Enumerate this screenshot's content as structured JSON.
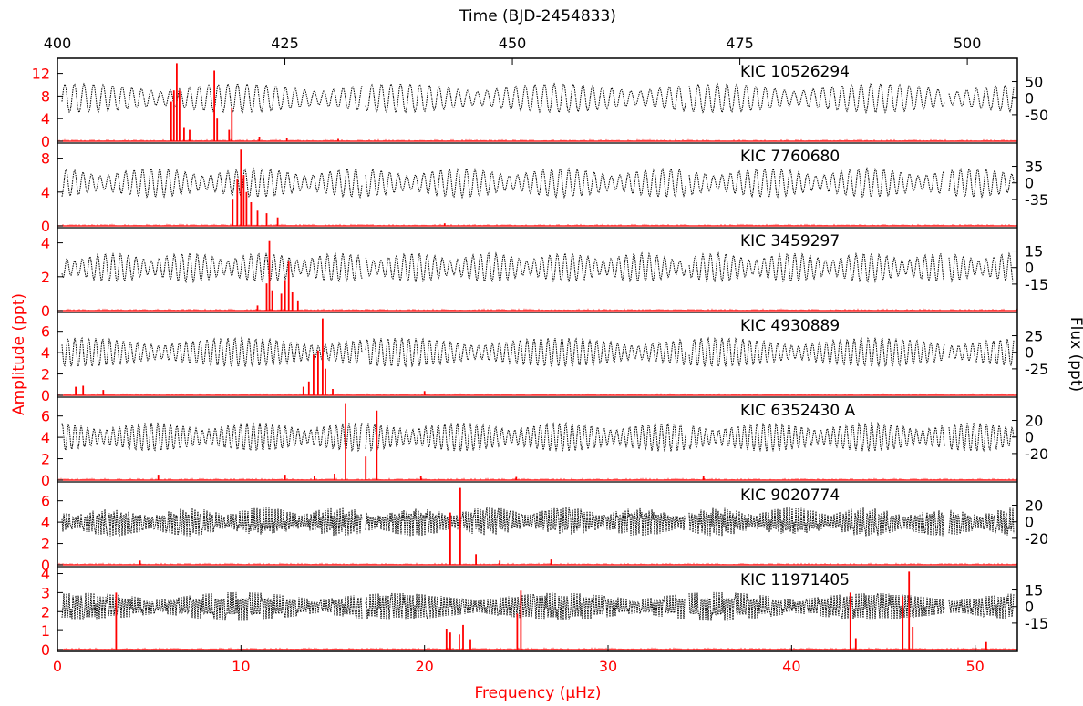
{
  "chart_data": {
    "type": "line",
    "title": "",
    "colors": {
      "amplitude": "#ff0000",
      "flux": "#000000"
    },
    "xlabel": "Frequency (μHz)",
    "xlim": [
      0,
      52.3
    ],
    "xticks": [
      0,
      10,
      20,
      30,
      40,
      50
    ],
    "x2label": "Time (BJD-2454833)",
    "x2lim": [
      400,
      505.5
    ],
    "x2ticks": [
      400,
      425,
      450,
      475,
      500
    ],
    "ylabel_left": "Amplitude (ppt)",
    "ylabel_right": "Flux (ppt)",
    "grid": false,
    "legend": "none",
    "panels": [
      {
        "name": "KIC 10526294",
        "amp_ticks": [
          0,
          4,
          8,
          12
        ],
        "amp_ylim": [
          0,
          13.8
        ],
        "flux_ticks": [
          "50",
          "0",
          "-50"
        ],
        "peaks": [
          [
            6.2,
            7
          ],
          [
            6.35,
            9
          ],
          [
            6.5,
            13.8
          ],
          [
            6.65,
            9
          ],
          [
            6.9,
            2.5
          ],
          [
            7.2,
            2
          ],
          [
            8.55,
            12.5
          ],
          [
            8.7,
            4
          ],
          [
            9.5,
            5.8
          ],
          [
            9.35,
            2
          ],
          [
            11.0,
            0.8
          ],
          [
            12.5,
            0.6
          ],
          [
            15.3,
            0.4
          ]
        ]
      },
      {
        "name": "KIC 7760680",
        "amp_ticks": [
          0,
          4,
          8
        ],
        "amp_ylim": [
          0,
          9.2
        ],
        "flux_ticks": [
          "35",
          "0",
          "-35"
        ],
        "peaks": [
          [
            9.55,
            3.2
          ],
          [
            9.8,
            5.5
          ],
          [
            10.0,
            9.0
          ],
          [
            10.15,
            6
          ],
          [
            10.3,
            4
          ],
          [
            10.55,
            2.8
          ],
          [
            10.9,
            1.8
          ],
          [
            11.4,
            1.5
          ],
          [
            12.0,
            1.0
          ],
          [
            21.1,
            0.3
          ]
        ]
      },
      {
        "name": "KIC 3459297",
        "amp_ticks": [
          0,
          2,
          4
        ],
        "amp_ylim": [
          0,
          4.6
        ],
        "flux_ticks": [
          "15",
          "0",
          "-15"
        ],
        "peaks": [
          [
            11.4,
            1.6
          ],
          [
            11.55,
            4.1
          ],
          [
            11.7,
            1.2
          ],
          [
            12.2,
            1.0
          ],
          [
            12.4,
            1.8
          ],
          [
            12.6,
            2.9
          ],
          [
            12.8,
            1.1
          ],
          [
            13.1,
            0.6
          ],
          [
            10.9,
            0.3
          ]
        ]
      },
      {
        "name": "KIC 4930889",
        "amp_ticks": [
          0,
          2,
          4,
          6
        ],
        "amp_ylim": [
          0,
          7.3
        ],
        "flux_ticks": [
          "25",
          "0",
          "-25"
        ],
        "peaks": [
          [
            1.0,
            0.8
          ],
          [
            1.4,
            0.9
          ],
          [
            2.5,
            0.5
          ],
          [
            13.4,
            0.8
          ],
          [
            13.7,
            1.3
          ],
          [
            13.95,
            3.8
          ],
          [
            14.2,
            4.2
          ],
          [
            14.45,
            7.2
          ],
          [
            14.6,
            2.5
          ],
          [
            15.0,
            0.6
          ],
          [
            20.0,
            0.4
          ]
        ]
      },
      {
        "name": "KIC 6352430 A",
        "amp_ticks": [
          0,
          2,
          4,
          6
        ],
        "amp_ylim": [
          0,
          7.3
        ],
        "flux_ticks": [
          "20",
          "0",
          "-20"
        ],
        "peaks": [
          [
            5.5,
            0.5
          ],
          [
            12.4,
            0.5
          ],
          [
            15.1,
            0.6
          ],
          [
            15.7,
            7.2
          ],
          [
            16.8,
            2.2
          ],
          [
            17.4,
            6.5
          ],
          [
            14.0,
            0.4
          ],
          [
            19.8,
            0.4
          ],
          [
            25.0,
            0.3
          ],
          [
            35.2,
            0.4
          ]
        ]
      },
      {
        "name": "KIC 9020774",
        "amp_ticks": [
          0,
          2,
          4,
          6
        ],
        "amp_ylim": [
          0,
          7.3
        ],
        "flux_ticks": [
          "20",
          "0",
          "-20"
        ],
        "peaks": [
          [
            4.5,
            0.4
          ],
          [
            21.4,
            4.9
          ],
          [
            21.95,
            7.2
          ],
          [
            22.8,
            1.0
          ],
          [
            24.1,
            0.4
          ],
          [
            26.9,
            0.5
          ]
        ]
      },
      {
        "name": "KIC 11971405",
        "amp_ticks": [
          0,
          1,
          2,
          3,
          4
        ],
        "amp_ylim": [
          0,
          4.1
        ],
        "flux_ticks": [
          "15",
          "0",
          "-15"
        ],
        "peaks": [
          [
            3.2,
            3.0
          ],
          [
            21.2,
            1.1
          ],
          [
            21.4,
            0.9
          ],
          [
            21.9,
            0.8
          ],
          [
            22.1,
            1.3
          ],
          [
            22.5,
            0.5
          ],
          [
            25.05,
            1.9
          ],
          [
            25.25,
            3.1
          ],
          [
            43.2,
            3.0
          ],
          [
            43.5,
            0.6
          ],
          [
            46.05,
            2.8
          ],
          [
            46.4,
            4.1
          ],
          [
            46.6,
            1.2
          ],
          [
            50.6,
            0.4
          ]
        ]
      }
    ]
  }
}
